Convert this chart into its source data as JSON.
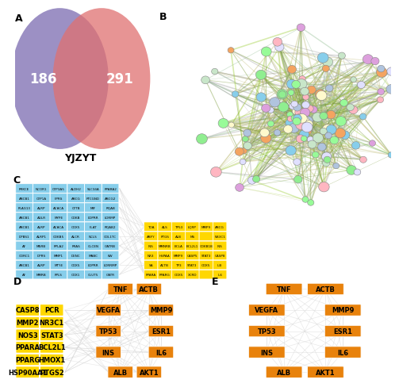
{
  "venn": {
    "left_num": "186",
    "right_num": "291",
    "label": "YJZYT",
    "left_color": "#7B6BB0",
    "right_color": "#E07070",
    "alpha": 0.75
  },
  "blue_grid_labels": [
    [
      "PRKCE",
      "NCOR1",
      "CYP3A5",
      "ALDH2",
      "SLC34A",
      "PPARA2"
    ],
    [
      "ABCB1",
      "CYP1A",
      "FPRS",
      "ABCG",
      "PTCGND",
      "ABCG2"
    ],
    [
      "PLAG13",
      "ALRP",
      "ACACA",
      "CYTB",
      "MIF",
      "RQAB"
    ],
    [
      "ABCB1",
      "AGLR",
      "MYPE",
      "CDKB",
      "LDPRR",
      "LORMP"
    ],
    [
      "ABCB1",
      "ALRP",
      "ACACA",
      "COX5",
      "FLAT",
      "RQAB2"
    ],
    [
      "DPBS1",
      "ALRP1",
      "CDKB5",
      "ALCR",
      "NCLS",
      "COL1TC"
    ],
    [
      "AF",
      "MNRB",
      "PPLA2",
      "PRAS",
      "GLCEN",
      "GATRB"
    ],
    [
      "CORC1",
      "DPRS",
      "MMP1",
      "DENC",
      "MABC",
      "KW"
    ],
    [
      "ABCB1",
      "ALRP",
      "MTYE",
      "COX5",
      "LDPRR",
      "LORRMP"
    ],
    [
      "AF",
      "MMRB",
      "PPLS",
      "COX1",
      "GLUT5",
      "GATR"
    ]
  ],
  "yellow_grid_labels": [
    [
      "TOA",
      "ALS",
      "TP53",
      "LQRP",
      "MMP9",
      "ABCG"
    ],
    [
      "ABFY",
      "PTGS",
      "ALB",
      "MS",
      "",
      "NR3C1"
    ],
    [
      "INS",
      "MMNRB",
      "BCLA",
      "BCL2L1",
      "CDKB1B",
      "INS"
    ],
    [
      "NR3",
      "HSPAA",
      "MMP9",
      "CASP5",
      "STAT3",
      "CASP8"
    ],
    [
      "SA",
      "ACTB",
      "TP3",
      "STAT3",
      "COX5",
      "ILB"
    ],
    [
      "PPARA",
      "PPARG",
      "COX5",
      "XCRD",
      "",
      "IL6"
    ]
  ],
  "blue_color": "#87CEEB",
  "yellow_color": "#FFD700",
  "orange_color": "#E8820C",
  "bg_color": "#FFFFFF",
  "left_yellow_boxes": [
    "CASP8",
    "PCR",
    "MMP2",
    "NR3C1",
    "NOS3",
    "STAT3",
    "PPARA",
    "BCL2L1",
    "PPARG",
    "HMOX1",
    "HSP90AA1",
    "PTGS2"
  ],
  "center_orange_boxes": [
    "TNF",
    "ACTB",
    "VEGFA",
    "MMP9",
    "TP53",
    "ESR1",
    "INS",
    "IL6",
    "ALB",
    "AKT1"
  ],
  "right_orange_boxes": [
    "TNF",
    "ACTB",
    "VEGFA",
    "MMP9",
    "TP53",
    "ESR1",
    "INS",
    "IL6",
    "ALB",
    "AKT1"
  ]
}
